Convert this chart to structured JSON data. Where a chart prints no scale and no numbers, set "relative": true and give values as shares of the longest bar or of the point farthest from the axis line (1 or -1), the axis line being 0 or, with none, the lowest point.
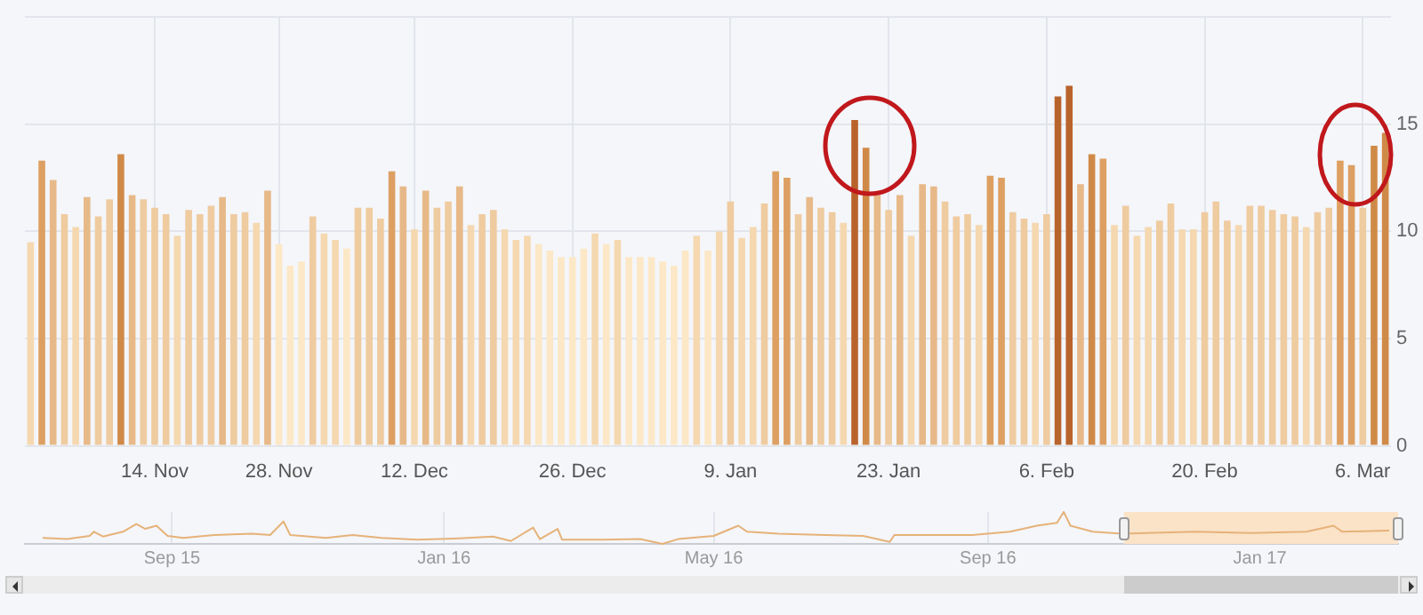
{
  "chart_data": [
    {
      "type": "bar",
      "categories": [
        null,
        null,
        null,
        null,
        null,
        null,
        null,
        null,
        null,
        null,
        null,
        "14. Nov",
        null,
        null,
        null,
        null,
        null,
        null,
        null,
        null,
        null,
        null,
        "28. Nov",
        null,
        null,
        null,
        null,
        null,
        null,
        null,
        null,
        null,
        null,
        null,
        "12. Dec",
        null,
        null,
        null,
        null,
        null,
        null,
        null,
        null,
        null,
        null,
        null,
        null,
        null,
        "26. Dec",
        null,
        null,
        null,
        null,
        null,
        null,
        null,
        null,
        null,
        null,
        null,
        null,
        null,
        "9. Jan",
        null,
        null,
        null,
        null,
        null,
        null,
        null,
        null,
        null,
        null,
        null,
        null,
        null,
        "23. Jan",
        null,
        null,
        null,
        null,
        null,
        null,
        null,
        null,
        null,
        null,
        null,
        null,
        null,
        "6. Feb",
        null,
        null,
        null,
        null,
        null,
        null,
        null,
        null,
        null,
        null,
        null,
        null,
        null,
        "20. Feb",
        null,
        null,
        null,
        null,
        null,
        null,
        null,
        null,
        null,
        null,
        null,
        null,
        null,
        "6. Mar",
        null,
        null
      ],
      "values": [
        9.5,
        13.3,
        12.4,
        10.8,
        10.2,
        11.6,
        10.7,
        11.5,
        13.6,
        11.7,
        11.5,
        11.1,
        10.8,
        9.8,
        11.0,
        10.8,
        11.2,
        11.6,
        10.8,
        10.9,
        10.4,
        11.9,
        9.4,
        8.4,
        8.6,
        10.7,
        9.9,
        9.6,
        9.2,
        11.1,
        11.1,
        10.6,
        12.8,
        12.1,
        10.1,
        11.9,
        11.1,
        11.4,
        12.1,
        10.3,
        10.8,
        11.0,
        10.1,
        9.6,
        9.8,
        9.4,
        9.1,
        8.8,
        8.8,
        9.2,
        9.9,
        9.4,
        9.6,
        8.8,
        8.8,
        8.8,
        8.6,
        8.4,
        9.1,
        9.8,
        9.1,
        10.0,
        11.4,
        9.7,
        10.2,
        11.3,
        12.8,
        12.5,
        10.8,
        11.6,
        11.1,
        10.9,
        10.4,
        15.2,
        13.9,
        11.7,
        11.0,
        11.7,
        9.8,
        12.2,
        12.1,
        11.4,
        10.7,
        10.8,
        10.3,
        12.6,
        12.5,
        10.9,
        10.6,
        10.4,
        10.8,
        16.3,
        16.8,
        12.2,
        13.6,
        13.4,
        10.3,
        11.2,
        9.8,
        10.2,
        10.5,
        11.3,
        10.1,
        10.1,
        10.9,
        11.4,
        10.5,
        10.3,
        11.2,
        11.2,
        11.0,
        10.8,
        10.7,
        10.2,
        10.9,
        11.1,
        13.3,
        13.1,
        11.1,
        14.0,
        14.6
      ],
      "colors": [
        "#f5d8b0",
        "#dda062",
        "#e7b988",
        "#efcba0",
        "#f5d8b0",
        "#e7b988",
        "#efcba0",
        "#efcba0",
        "#d08a48",
        "#e7b988",
        "#efcba0",
        "#efcba0",
        "#efcba0",
        "#f5d8b0",
        "#efcba0",
        "#efcba0",
        "#efcba0",
        "#e7b988",
        "#efcba0",
        "#efcba0",
        "#f5d8b0",
        "#e7b988",
        "#fce8c6",
        "#fce8c6",
        "#fce8c6",
        "#efcba0",
        "#f5d8b0",
        "#f5d8b0",
        "#fce8c6",
        "#efcba0",
        "#efcba0",
        "#efcba0",
        "#dda062",
        "#e7b988",
        "#f5d8b0",
        "#e7b988",
        "#efcba0",
        "#efcba0",
        "#e7b988",
        "#f5d8b0",
        "#efcba0",
        "#efcba0",
        "#f5d8b0",
        "#f5d8b0",
        "#f5d8b0",
        "#fce8c6",
        "#fce8c6",
        "#fce8c6",
        "#fce8c6",
        "#fce8c6",
        "#f5d8b0",
        "#fce8c6",
        "#f5d8b0",
        "#fce8c6",
        "#fce8c6",
        "#fce8c6",
        "#fce8c6",
        "#fce8c6",
        "#fce8c6",
        "#f5d8b0",
        "#fce8c6",
        "#f5d8b0",
        "#efcba0",
        "#f5d8b0",
        "#f5d8b0",
        "#efcba0",
        "#dda062",
        "#dda062",
        "#efcba0",
        "#e7b988",
        "#efcba0",
        "#efcba0",
        "#f5d8b0",
        "#b9632c",
        "#d08a48",
        "#e7b988",
        "#efcba0",
        "#e7b988",
        "#f5d8b0",
        "#e7b988",
        "#e7b988",
        "#efcba0",
        "#efcba0",
        "#efcba0",
        "#f5d8b0",
        "#dda062",
        "#dda062",
        "#efcba0",
        "#efcba0",
        "#f5d8b0",
        "#efcba0",
        "#b9632c",
        "#b9632c",
        "#e7b988",
        "#d08a48",
        "#dda062",
        "#f5d8b0",
        "#efcba0",
        "#f5d8b0",
        "#f5d8b0",
        "#efcba0",
        "#efcba0",
        "#f5d8b0",
        "#f5d8b0",
        "#efcba0",
        "#efcba0",
        "#efcba0",
        "#f5d8b0",
        "#efcba0",
        "#efcba0",
        "#efcba0",
        "#efcba0",
        "#efcba0",
        "#f5d8b0",
        "#efcba0",
        "#efcba0",
        "#dda062",
        "#dda062",
        "#efcba0",
        "#d08a48",
        "#d08a48"
      ],
      "ylim": [
        0,
        20
      ],
      "yticks": [
        0,
        5,
        10,
        15,
        {
          "value": 20,
          "label": null
        }
      ],
      "grid": true
    },
    {
      "type": "line",
      "relative": true,
      "color": "#e6b279",
      "grid": "x",
      "x": [
        "2015-07-05",
        "2015-07-16",
        "2015-07-26",
        "2015-07-28",
        "2015-08-01",
        "2015-08-10",
        "2015-08-16",
        "2015-08-20",
        "2015-08-25",
        "2015-08-30",
        "2015-09-06",
        "2015-09-20",
        "2015-10-07",
        "2015-10-15",
        "2015-10-21",
        "2015-10-24",
        "2015-11-09",
        "2015-11-21",
        "2015-12-04",
        "2015-12-20",
        "2016-01-06",
        "2016-01-23",
        "2016-01-31",
        "2016-02-10",
        "2016-02-13",
        "2016-02-21",
        "2016-02-23",
        "2016-03-12",
        "2016-03-29",
        "2016-04-08",
        "2016-04-15",
        "2016-05-01",
        "2016-05-12",
        "2016-05-16",
        "2016-05-30",
        "2016-06-20",
        "2016-07-07",
        "2016-07-19",
        "2016-07-21",
        "2016-08-09",
        "2016-08-25",
        "2016-09-11",
        "2016-09-23",
        "2016-10-02",
        "2016-10-05",
        "2016-10-08",
        "2016-10-18",
        "2016-10-31",
        "2016-12-03",
        "2016-12-28",
        "2017-01-22",
        "2017-02-03",
        "2017-02-07",
        "2017-02-28"
      ],
      "values": [
        0.19,
        0.15,
        0.25,
        0.38,
        0.23,
        0.38,
        0.62,
        0.47,
        0.57,
        0.25,
        0.19,
        0.28,
        0.32,
        0.28,
        0.7,
        0.28,
        0.19,
        0.28,
        0.19,
        0.13,
        0.17,
        0.23,
        0.09,
        0.51,
        0.15,
        0.47,
        0.13,
        0.13,
        0.15,
        0,
        0.15,
        0.25,
        0.57,
        0.38,
        0.32,
        0.28,
        0.25,
        0.06,
        0.28,
        0.28,
        0.28,
        0.38,
        0.57,
        0.66,
        1,
        0.57,
        0.38,
        0.32,
        0.38,
        0.34,
        0.38,
        0.57,
        0.38,
        0.42
      ],
      "xlim": [
        "2015-06-27",
        "2017-03-04"
      ],
      "xticks": [
        {
          "value": "2015-09-01",
          "label": "Sep 15"
        },
        {
          "value": "2016-01-01",
          "label": "Jan 16"
        },
        {
          "value": "2016-05-01",
          "label": "May 16"
        },
        {
          "value": "2016-09-01",
          "label": "Sep 16"
        },
        {
          "value": "2017-01-01",
          "label": "Jan 17"
        }
      ],
      "bands": [
        {
          "axis": "x",
          "from": "2016-11-01",
          "to": "2017-03-04",
          "color": "#fbe3c8"
        }
      ]
    }
  ]
}
